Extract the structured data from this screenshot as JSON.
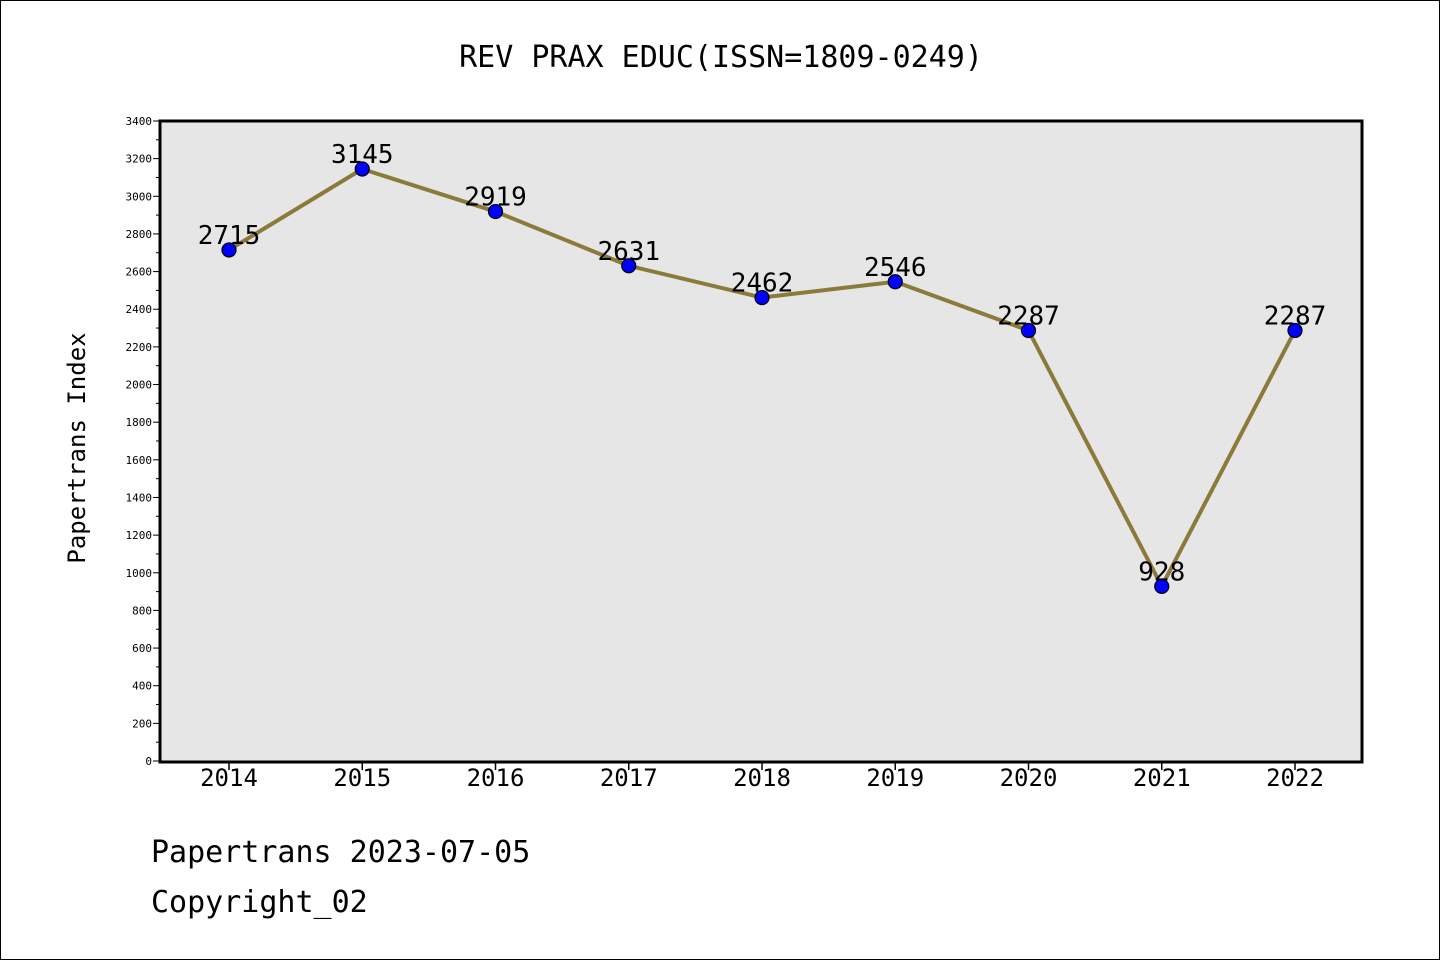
{
  "footer": {
    "source_line": "Papertrans 2023-07-05",
    "copyright_line": "Copyright_02"
  },
  "colors": {
    "plot_background": "#e6e6e6",
    "line": "#8b7a3a",
    "marker": "#0000ff"
  },
  "chart_data": {
    "type": "line",
    "title": "REV PRAX EDUC(ISSN=1809-0249)",
    "xlabel": "",
    "ylabel": "Papertrans Index",
    "categories": [
      "2014",
      "2015",
      "2016",
      "2017",
      "2018",
      "2019",
      "2020",
      "2021",
      "2022"
    ],
    "values": [
      2715,
      3145,
      2919,
      2631,
      2462,
      2546,
      2287,
      928,
      2287
    ],
    "data_labels": [
      "2715",
      "3145",
      "2919",
      "2631",
      "2462",
      "2546",
      "2287",
      "928",
      "2287"
    ],
    "ylim": [
      0,
      3400
    ],
    "yticks": [
      0,
      200,
      400,
      600,
      800,
      1000,
      1200,
      1400,
      1600,
      1800,
      2000,
      2200,
      2400,
      2600,
      2800,
      3000,
      3200,
      3400
    ],
    "grid": false,
    "legend": "none"
  }
}
